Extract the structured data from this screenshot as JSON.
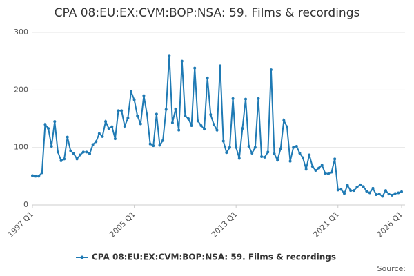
{
  "chart_data": {
    "type": "line",
    "title": "CPA 08:EU:EX:CVM:BOP:NSA: 59. Films & recordings",
    "source": "Source:",
    "categories": [
      "1997 Q1",
      null,
      null,
      null,
      null,
      null,
      null,
      null,
      null,
      null,
      null,
      null,
      null,
      null,
      null,
      null,
      null,
      null,
      null,
      null,
      null,
      null,
      null,
      null,
      null,
      null,
      null,
      null,
      null,
      null,
      null,
      null,
      "2005 Q1",
      null,
      null,
      null,
      null,
      null,
      null,
      null,
      null,
      null,
      null,
      null,
      null,
      null,
      null,
      null,
      null,
      null,
      null,
      null,
      null,
      null,
      null,
      null,
      null,
      null,
      null,
      null,
      null,
      null,
      null,
      null,
      "2013 Q1",
      null,
      null,
      null,
      null,
      null,
      null,
      null,
      null,
      null,
      null,
      null,
      null,
      null,
      null,
      null,
      null,
      null,
      null,
      null,
      null,
      null,
      null,
      null,
      null,
      null,
      null,
      null,
      null,
      null,
      null,
      null,
      "2021 Q1",
      null,
      null,
      null,
      null,
      null,
      null,
      null,
      null,
      null,
      null,
      null,
      null,
      null,
      null,
      null,
      null,
      null,
      null,
      null,
      "2026 Q1"
    ],
    "series": [
      {
        "name": "CPA 08:EU:EX:CVM:BOP:NSA: 59. Films & recordings",
        "color": "#1f7ab4",
        "values": [
          51,
          50,
          50,
          56,
          140,
          133,
          102,
          145,
          92,
          77,
          80,
          118,
          94,
          89,
          80,
          87,
          92,
          92,
          89,
          105,
          110,
          124,
          119,
          145,
          133,
          136,
          115,
          164,
          164,
          137,
          151,
          197,
          183,
          155,
          141,
          190,
          158,
          106,
          103,
          158,
          104,
          112,
          166,
          260,
          143,
          167,
          130,
          250,
          155,
          150,
          138,
          238,
          146,
          138,
          132,
          221,
          157,
          140,
          130,
          242,
          111,
          91,
          100,
          185,
          100,
          81,
          133,
          184,
          102,
          90,
          100,
          185,
          84,
          83,
          92,
          235,
          89,
          78,
          98,
          147,
          136,
          76,
          100,
          102,
          90,
          82,
          62,
          87,
          67,
          60,
          64,
          69,
          55,
          54,
          57,
          80,
          26,
          27,
          20,
          34,
          25,
          25,
          31,
          35,
          32,
          24,
          21,
          29,
          18,
          19,
          15,
          25,
          19,
          17,
          20,
          21,
          23
        ]
      }
    ],
    "ylim": [
      0,
      300
    ],
    "yticks": [
      0,
      100,
      200,
      300
    ],
    "grid": true
  }
}
